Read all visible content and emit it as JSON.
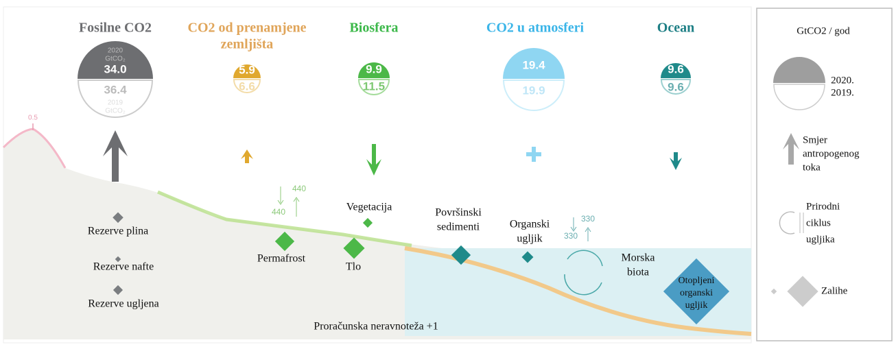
{
  "columns": [
    {
      "title": [
        "Fosilne CO2"
      ],
      "year_2020": "2020",
      "unit_2020": "GtCO₂",
      "value_2020": "34.0",
      "value_2019": "36.4",
      "year_2019": "2019",
      "unit_2019": "GtCO₂"
    },
    {
      "title": [
        "CO2 od prenamjene",
        "zemljišta"
      ],
      "value_2020": "5.9",
      "value_2019": "6.6"
    },
    {
      "title": [
        "Biosfera"
      ],
      "value_2020": "9.9",
      "value_2019": "11.5"
    },
    {
      "title": [
        "CO2 u atmosferi"
      ],
      "value_2020": "19.4",
      "value_2019": "19.9"
    },
    {
      "title": [
        "Ocean"
      ],
      "value_2020": "9.6",
      "value_2019": "9.6"
    }
  ],
  "peak_label": "0.5",
  "fluxes": {
    "land_down": "440",
    "land_up": "440",
    "ocean_down": "330",
    "ocean_up": "330"
  },
  "stocks": [
    {
      "label": [
        "Rezerve plina"
      ]
    },
    {
      "label": [
        "Rezerve nafte"
      ]
    },
    {
      "label": [
        "Rezerve ugljena"
      ]
    },
    {
      "label": [
        "Permafrost"
      ]
    },
    {
      "label": [
        "Vegetacija"
      ]
    },
    {
      "label": [
        "Tlo"
      ]
    },
    {
      "label": [
        "Površinski",
        "sedimenti"
      ]
    },
    {
      "label": [
        "Organski",
        "ugljik"
      ]
    },
    {
      "label": [
        "Morska",
        "biota"
      ]
    },
    {
      "label": [
        "Otopljeni",
        "organski",
        "ugljik"
      ]
    }
  ],
  "budget_imbalance": "Proračunska neravnoteža +1",
  "legend": {
    "title": "GtCO2 / god",
    "year_2020": "2020.",
    "year_2019": "2019.",
    "flux": [
      "Smjer",
      "antropogenog",
      "toka"
    ],
    "cycle": [
      "Prirodni",
      "ciklus",
      "ugljika"
    ],
    "stocks": "Zalihe"
  }
}
